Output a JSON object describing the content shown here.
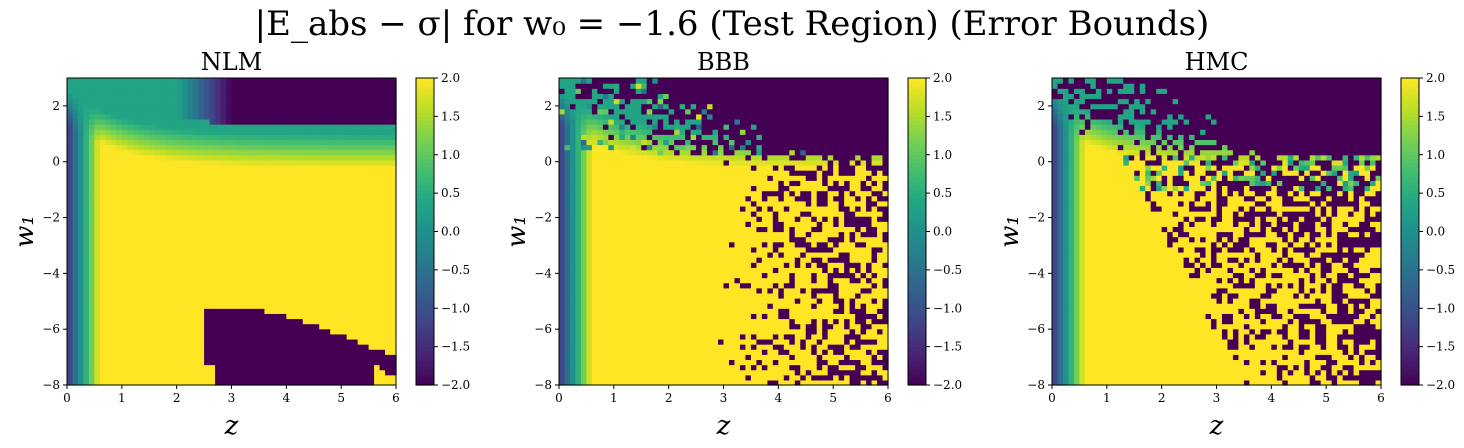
{
  "figure": {
    "suptitle": "|E_abs − σ| for w₀ = −1.6 (Test Region) (Error Bounds)"
  },
  "chart_data": [
    {
      "type": "heatmap",
      "title": "NLM",
      "xlabel": "z",
      "ylabel": "w₁",
      "xlim": [
        0,
        6
      ],
      "ylim": [
        -8,
        3
      ],
      "xticks": [
        "0",
        "1",
        "2",
        "3",
        "4",
        "5",
        "6"
      ],
      "yticks": [
        "−8",
        "−6",
        "−4",
        "−2",
        "0",
        "2"
      ],
      "colorbar": {
        "range": [
          -2.0,
          2.0
        ],
        "ticks": [
          "−2.0",
          "−1.5",
          "−1.0",
          "−0.5",
          "0.0",
          "0.5",
          "1.0",
          "1.5",
          "2.0"
        ],
        "colormap": "viridis"
      },
      "grid": [
        60,
        60
      ],
      "description_values": {
        "low_z_edge": "about -1 to 0.5 near z=0",
        "main_region": "2.0 (saturated)",
        "upper_band_w1_gt_1.5": "about 0.3, dropping to -2.0 for z > 2.5 and w1 > 1.8",
        "saturated_low_region": "-2.0 for z in [2.5, 6], w1 < -5.2 (wedge)"
      }
    },
    {
      "type": "heatmap",
      "title": "BBB",
      "xlabel": "z",
      "ylabel": "w₁",
      "xlim": [
        0,
        6
      ],
      "ylim": [
        -8,
        3
      ],
      "xticks": [
        "0",
        "1",
        "2",
        "3",
        "4",
        "5",
        "6"
      ],
      "yticks": [
        "−8",
        "−6",
        "−4",
        "−2",
        "0",
        "2"
      ],
      "colorbar": {
        "range": [
          -2.0,
          2.0
        ],
        "ticks": [
          "−2.0",
          "−1.5",
          "−1.0",
          "−0.5",
          "0.0",
          "0.5",
          "1.0",
          "1.5",
          "2.0"
        ],
        "colormap": "viridis"
      },
      "grid": [
        60,
        60
      ],
      "description_values": {
        "main_region": "2.0 for z < 3",
        "noisy_region": "random mix of -2.0 and 2.0 for z > 3",
        "upper_region": "about 0.3 to 0.8, becoming -2.0 toward top-right"
      }
    },
    {
      "type": "heatmap",
      "title": "HMC",
      "xlabel": "z",
      "ylabel": "w₁",
      "xlim": [
        0,
        6
      ],
      "ylim": [
        -8,
        3
      ],
      "xticks": [
        "0",
        "1",
        "2",
        "3",
        "4",
        "5",
        "6"
      ],
      "yticks": [
        "−8",
        "−6",
        "−4",
        "−2",
        "0",
        "2"
      ],
      "colorbar": {
        "range": [
          -2.0,
          2.0
        ],
        "ticks": [
          "−2.0",
          "−1.5",
          "−1.0",
          "−0.5",
          "0.0",
          "0.5",
          "1.0",
          "1.5",
          "2.0"
        ],
        "colormap": "viridis"
      },
      "grid": [
        60,
        60
      ],
      "description_values": {
        "main_region": "2.0 for low z, w1 < -2",
        "noisy_region": "random mix of -2.0 and 2.0 beyond curved boundary from (1.5, 0) to (3, -8)",
        "upper_region": "about 0.3 to 0.8, becoming -2.0 toward top-right"
      }
    }
  ]
}
